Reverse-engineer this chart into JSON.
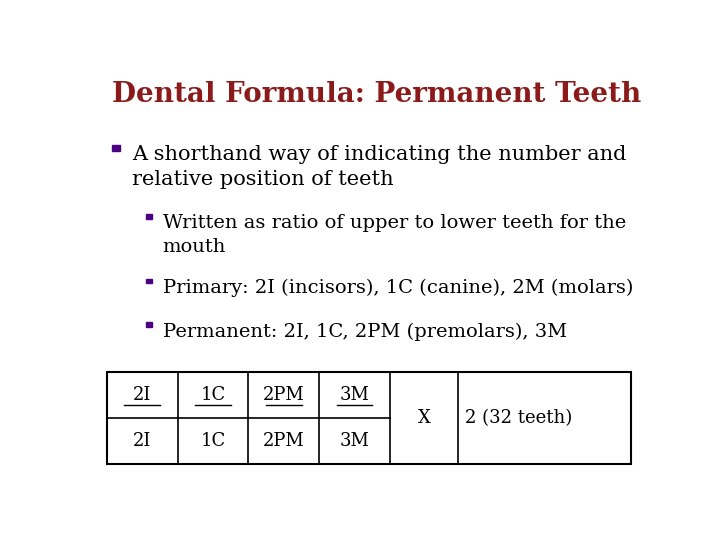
{
  "title": "Dental Formula: Permanent Teeth",
  "title_color": "#8B1A1A",
  "title_fontsize": 20,
  "background_color": "#FFFFFF",
  "bullet_color": "#4B0082",
  "text_color": "#000000",
  "bullet1": "A shorthand way of indicating the number and\nrelative position of teeth",
  "bullet1_fontsize": 15,
  "bullet2a": "Written as ratio of upper to lower teeth for the\nmouth",
  "bullet2b": "Primary: 2I (incisors), 1C (canine), 2M (molars)",
  "bullet2c": "Permanent: 2I, 1C, 2PM (premolars), 3M",
  "bullet2_fontsize": 14,
  "table_top_row": [
    "2I",
    "1C",
    "2PM",
    "3M"
  ],
  "table_bottom_row": [
    "2I",
    "1C",
    "2PM",
    "3M"
  ],
  "table_x_label": "X",
  "table_result_label": "2 (32 teeth)"
}
